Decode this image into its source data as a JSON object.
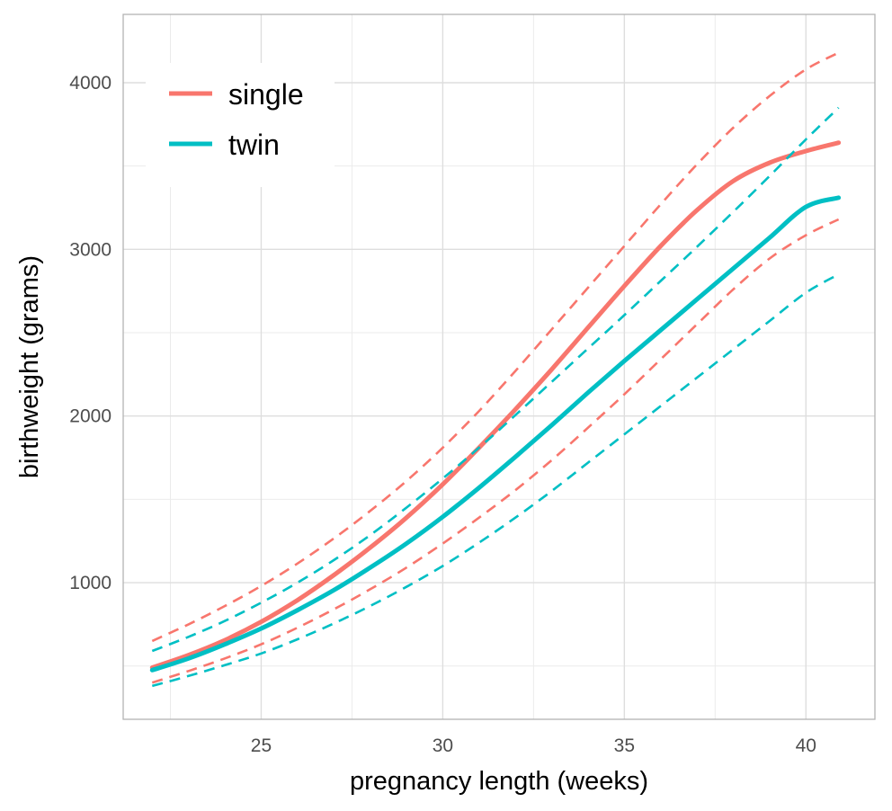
{
  "chart_data": {
    "type": "line",
    "title": "",
    "xlabel": "pregnancy length (weeks)",
    "ylabel": "birthweight (grams)",
    "xlim": [
      21.2,
      41.9
    ],
    "ylim": [
      180,
      4410
    ],
    "xticks": [
      25,
      30,
      35,
      40
    ],
    "yticks": [
      1000,
      2000,
      3000,
      4000
    ],
    "x_tick_labels": [
      "25",
      "30",
      "35",
      "40"
    ],
    "y_tick_labels": [
      "1000",
      "2000",
      "3000",
      "4000"
    ],
    "grid": true,
    "legend_position": "top-left",
    "x": [
      22,
      23,
      24,
      25,
      26,
      27,
      28,
      29,
      30,
      31,
      32,
      33,
      34,
      35,
      36,
      37,
      38,
      39,
      40,
      40.9
    ],
    "series": [
      {
        "name": "single",
        "color": "#F8766D",
        "values": [
          490,
          565,
          655,
          765,
          895,
          1045,
          1210,
          1390,
          1590,
          1810,
          2040,
          2280,
          2530,
          2780,
          3020,
          3235,
          3410,
          3520,
          3590,
          3640
        ],
        "lower": [
          400,
          470,
          545,
          630,
          730,
          840,
          960,
          1090,
          1235,
          1390,
          1555,
          1735,
          1930,
          2130,
          2340,
          2550,
          2760,
          2945,
          3085,
          3180
        ],
        "upper": [
          650,
          750,
          860,
          980,
          1115,
          1265,
          1430,
          1610,
          1810,
          2030,
          2270,
          2520,
          2770,
          3020,
          3270,
          3510,
          3730,
          3920,
          4080,
          4180
        ]
      },
      {
        "name": "twin",
        "color": "#00BFC4",
        "values": [
          475,
          545,
          630,
          725,
          835,
          955,
          1090,
          1235,
          1395,
          1570,
          1755,
          1945,
          2140,
          2330,
          2515,
          2700,
          2885,
          3070,
          3255,
          3310
        ],
        "lower": [
          380,
          440,
          505,
          575,
          660,
          755,
          860,
          975,
          1100,
          1240,
          1390,
          1550,
          1720,
          1890,
          2060,
          2230,
          2400,
          2570,
          2740,
          2850
        ],
        "upper": [
          590,
          675,
          770,
          880,
          1000,
          1135,
          1285,
          1450,
          1625,
          1810,
          2005,
          2205,
          2405,
          2605,
          2810,
          3015,
          3225,
          3440,
          3660,
          3850
        ]
      }
    ]
  }
}
